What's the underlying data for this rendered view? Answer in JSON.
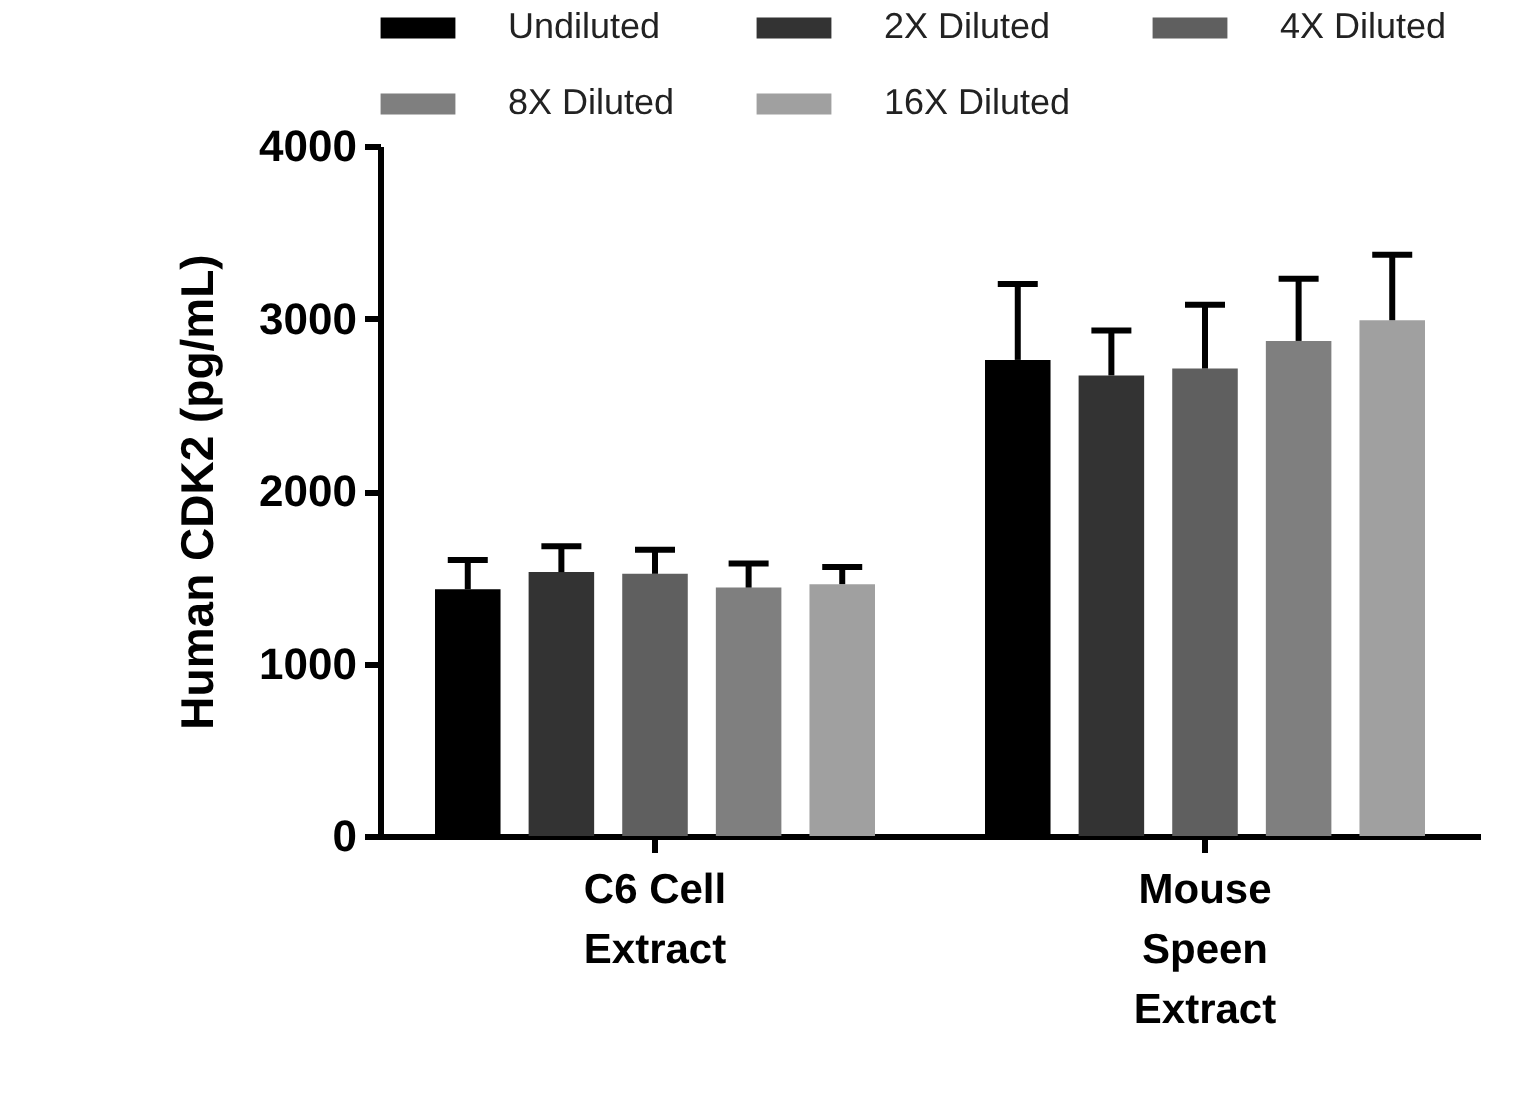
{
  "chart_data": {
    "type": "bar",
    "ylabel": "Human CDK2 (pg/mL)",
    "categories": [
      "C6 Cell Extract",
      "Mouse Speen Extract"
    ],
    "series": [
      {
        "name": "Undiluted",
        "color": "#000000",
        "values": [
          1430,
          2760
        ],
        "errors": [
          170,
          440
        ]
      },
      {
        "name": "2X Diluted",
        "color": "#333333",
        "values": [
          1530,
          2670
        ],
        "errors": [
          150,
          260
        ]
      },
      {
        "name": "4X Diluted",
        "color": "#5f5f5f",
        "values": [
          1520,
          2710
        ],
        "errors": [
          140,
          370
        ]
      },
      {
        "name": "8X Diluted",
        "color": "#7f7f7f",
        "values": [
          1440,
          2870
        ],
        "errors": [
          140,
          360
        ]
      },
      {
        "name": "16X Diluted",
        "color": "#a0a0a0",
        "values": [
          1460,
          2990
        ],
        "errors": [
          100,
          380
        ]
      }
    ],
    "ylim": [
      0,
      4000
    ],
    "yticks": [
      0,
      1000,
      2000,
      3000,
      4000
    ],
    "grid": false,
    "legend": "top"
  }
}
